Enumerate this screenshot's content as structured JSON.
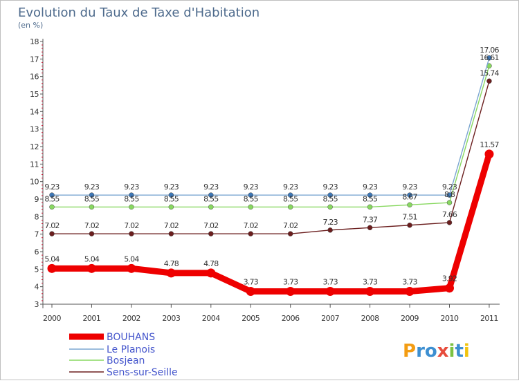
{
  "chart_data": {
    "type": "line",
    "title": "Evolution du Taux de Taxe d'Habitation",
    "subtitle": "(en %)",
    "x": [
      "2000",
      "2001",
      "2002",
      "2003",
      "2004",
      "2005",
      "2006",
      "2007",
      "2008",
      "2009",
      "2010",
      "2011"
    ],
    "ylim": [
      3,
      18
    ],
    "yticks": [
      "3",
      "4",
      "5",
      "6",
      "7",
      "8",
      "9",
      "10",
      "11",
      "12",
      "13",
      "14",
      "15",
      "16",
      "17",
      "18"
    ],
    "grid": false,
    "legend_position": "bottom-left",
    "series": [
      {
        "name": "Sens-sur-Seille",
        "color": "#6b1e1e",
        "values": [
          7.02,
          7.02,
          7.02,
          7.02,
          7.02,
          7.02,
          7.02,
          7.23,
          7.37,
          7.51,
          7.66,
          15.74
        ],
        "labels": [
          "7.02",
          "7.02",
          "7.02",
          "7.02",
          "7.02",
          "7.02",
          "7.02",
          "7.23",
          "7.37",
          "7.51",
          "7.66",
          "15.74"
        ]
      },
      {
        "name": "Bosjean",
        "color": "#88d860",
        "values": [
          8.55,
          8.55,
          8.55,
          8.55,
          8.55,
          8.55,
          8.55,
          8.55,
          8.55,
          8.67,
          8.8,
          16.61
        ],
        "labels": [
          "8.55",
          "8.55",
          "8.55",
          "8.55",
          "8.55",
          "8.55",
          "8.55",
          "8.55",
          "8.55",
          "8.67",
          "8.8",
          "16.61"
        ]
      },
      {
        "name": "Le Planois",
        "color": "#7aa6d0",
        "values": [
          9.23,
          9.23,
          9.23,
          9.23,
          9.23,
          9.23,
          9.23,
          9.23,
          9.23,
          9.23,
          9.23,
          17.06
        ],
        "labels": [
          "9.23",
          "9.23",
          "9.23",
          "9.23",
          "9.23",
          "9.23",
          "9.23",
          "9.23",
          "9.23",
          "9.23",
          "9.23",
          "17.06"
        ]
      },
      {
        "name": "BOUHANS",
        "color": "#ee0000",
        "values": [
          5.04,
          5.04,
          5.04,
          4.78,
          4.78,
          3.73,
          3.73,
          3.73,
          3.73,
          3.73,
          3.92,
          11.57
        ],
        "labels": [
          "5.04",
          "5.04",
          "5.04",
          "4.78",
          "4.78",
          "3.73",
          "3.73",
          "3.73",
          "3.73",
          "3.73",
          "3.92",
          "11.57"
        ]
      }
    ],
    "legend": [
      "BOUHANS",
      "Le Planois",
      "Bosjean",
      "Sens-sur-Seille"
    ],
    "colors": {
      "BOUHANS": "#ee0000",
      "Le Planois": "#7aa6d0",
      "Bosjean": "#88d860",
      "Sens-sur-Seille": "#6b1e1e",
      "Le Planois_marker": "#3d78b8",
      "Bosjean_marker": "#88d860",
      "Sens-sur-Seille_marker": "#6b1e1e"
    }
  },
  "branding": {
    "logo_text": "Proxiti",
    "logo_letters": [
      "P",
      "r",
      "o",
      "x",
      "i",
      "t",
      "i"
    ],
    "logo_colors": [
      "#f39c12",
      "#3d8fd1",
      "#3d8fd1",
      "#e74c3c",
      "#7cc242",
      "#3d8fd1",
      "#f1c40f"
    ]
  }
}
